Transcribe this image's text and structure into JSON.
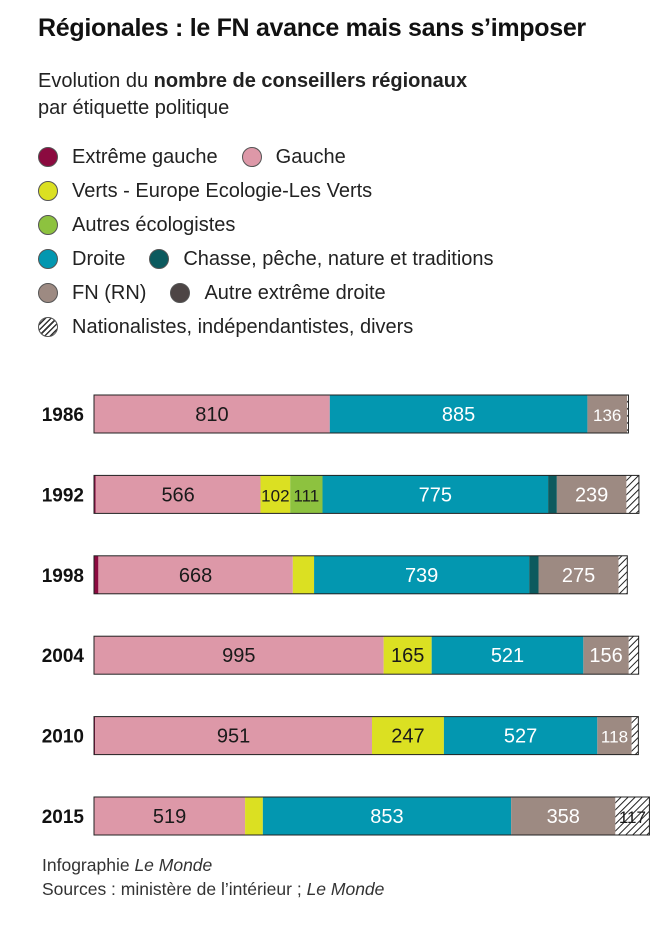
{
  "title": "Régionales : le FN avance mais sans s’imposer",
  "subtitle": {
    "line1_pre": "Evolution du ",
    "line1_bold": "nombre de conseillers régionaux",
    "line2": "par étiquette politique"
  },
  "legend": [
    {
      "label": "Extrême gauche",
      "color": "#8b0a3f"
    },
    {
      "label": "Gauche",
      "color": "#dd98a8"
    },
    {
      "label": "Verts - Europe Ecologie-Les Verts",
      "color": "#dbe022"
    },
    {
      "label": "Autres écologistes",
      "color": "#8dc23f"
    },
    {
      "label": "Droite",
      "color": "#0397b0"
    },
    {
      "label": "Chasse, pêche, nature et traditions",
      "color": "#0c5a5e"
    },
    {
      "label": "FN (RN)",
      "color": "#9d8a82"
    },
    {
      "label": "Autre extrême droite",
      "color": "#4d4545"
    },
    {
      "label": "Nationalistes, indépendantistes, divers",
      "color": "hatch"
    }
  ],
  "chart_data": {
    "type": "bar",
    "orientation": "horizontal",
    "stacked": true,
    "categories": [
      "1986",
      "1992",
      "1998",
      "2004",
      "2010",
      "2015"
    ],
    "series": [
      {
        "name": "Extrême gauche",
        "color": "#8b0a3f",
        "values": [
          0,
          6,
          15,
          0,
          4,
          0
        ]
      },
      {
        "name": "Gauche",
        "color": "#dd98a8",
        "values": [
          810,
          566,
          668,
          995,
          951,
          519
        ]
      },
      {
        "name": "Verts - Europe Ecologie-Les Verts",
        "color": "#dbe022",
        "values": [
          0,
          102,
          73,
          165,
          247,
          61
        ]
      },
      {
        "name": "Autres écologistes",
        "color": "#8dc23f",
        "values": [
          0,
          111,
          0,
          0,
          0,
          0
        ]
      },
      {
        "name": "Droite",
        "color": "#0397b0",
        "values": [
          885,
          775,
          739,
          521,
          527,
          853
        ]
      },
      {
        "name": "Chasse, pêche, nature et traditions",
        "color": "#0c5a5e",
        "values": [
          0,
          30,
          32,
          0,
          0,
          0
        ]
      },
      {
        "name": "FN (RN)",
        "color": "#9d8a82",
        "values": [
          136,
          239,
          275,
          156,
          118,
          358
        ]
      },
      {
        "name": "Autre extrême droite",
        "color": "#4d4545",
        "values": [
          0,
          0,
          0,
          0,
          0,
          0
        ]
      },
      {
        "name": "Nationalistes, indépendantistes, divers",
        "color": "hatch",
        "values": [
          5,
          43,
          30,
          34,
          23,
          117
        ]
      }
    ],
    "value_labels": [
      [
        "810",
        "885",
        "136"
      ],
      [
        "566",
        "102",
        "111",
        "775",
        "239"
      ],
      [
        "668",
        "739",
        "275"
      ],
      [
        "995",
        "165",
        "521",
        "156"
      ],
      [
        "951",
        "247",
        "527",
        "118"
      ],
      [
        "519",
        "853",
        "358",
        "117"
      ]
    ],
    "xlim": [
      0,
      1836
    ],
    "grid": false,
    "legend_position": "top"
  },
  "footer": {
    "line1_pre": "Infographie ",
    "line1_italic": "Le Monde",
    "line2_pre": "Sources : ministère de l’intérieur ; ",
    "line2_italic": "Le Monde"
  }
}
